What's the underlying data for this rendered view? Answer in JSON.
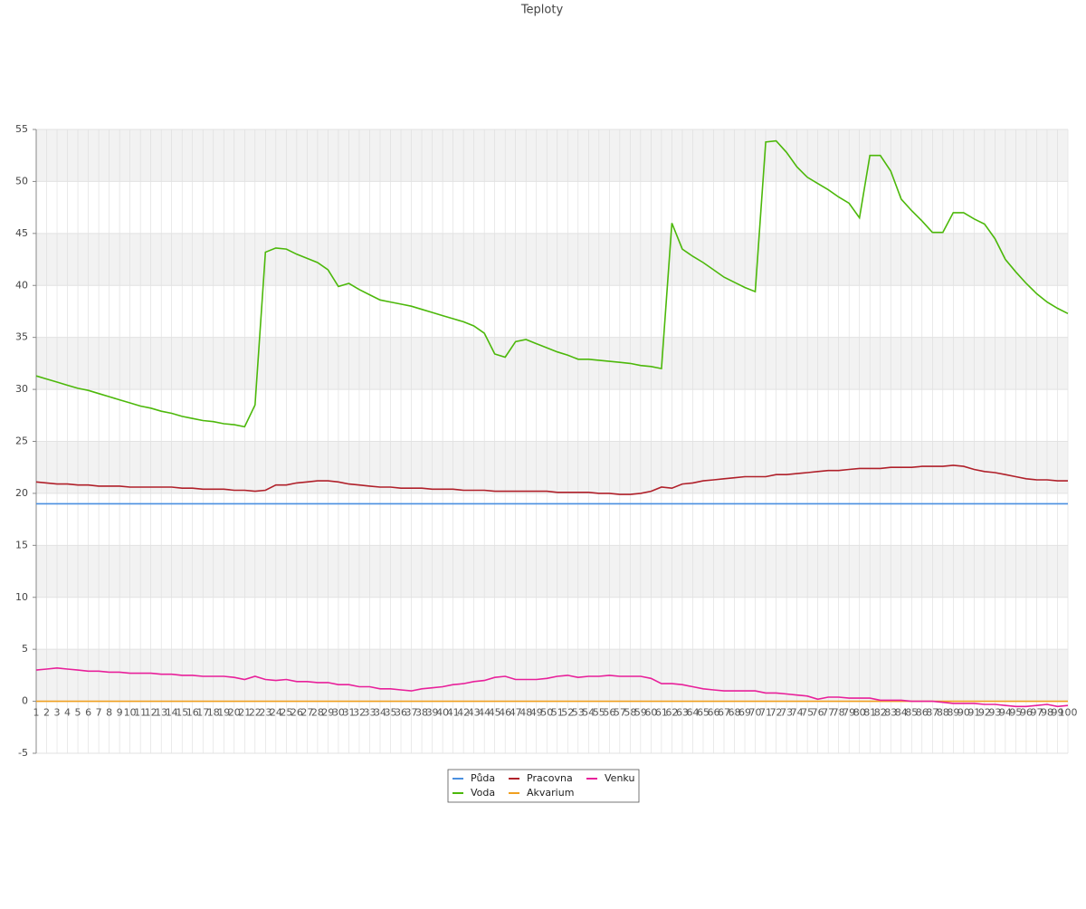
{
  "chart_data": {
    "type": "line",
    "title": "Teploty",
    "categories": [
      "1",
      "2",
      "3",
      "4",
      "5",
      "6",
      "7",
      "8",
      "9",
      "10",
      "11",
      "12",
      "13",
      "14",
      "15",
      "16",
      "17",
      "18",
      "19",
      "20",
      "21",
      "22",
      "23",
      "24",
      "25",
      "26",
      "27",
      "28",
      "29",
      "30",
      "31",
      "32",
      "33",
      "34",
      "35",
      "36",
      "37",
      "38",
      "39",
      "40",
      "41",
      "42",
      "43",
      "44",
      "45",
      "46",
      "47",
      "48",
      "49",
      "50",
      "51",
      "52",
      "53",
      "54",
      "55",
      "56",
      "57",
      "58",
      "59",
      "60",
      "61",
      "62",
      "63",
      "64",
      "65",
      "66",
      "67",
      "68",
      "69",
      "70",
      "71",
      "72",
      "73",
      "74",
      "75",
      "76",
      "77",
      "78",
      "79",
      "80",
      "81",
      "82",
      "83",
      "84",
      "85",
      "86",
      "87",
      "88",
      "89",
      "90",
      "91",
      "92",
      "93",
      "94",
      "95",
      "96",
      "97",
      "98",
      "99",
      "100"
    ],
    "series": [
      {
        "name": "Půda",
        "color": "#4a8fe0",
        "values": [
          19,
          19,
          19,
          19,
          19,
          19,
          19,
          19,
          19,
          19,
          19,
          19,
          19,
          19,
          19,
          19,
          19,
          19,
          19,
          19,
          19,
          19,
          19,
          19,
          19,
          19,
          19,
          19,
          19,
          19,
          19,
          19,
          19,
          19,
          19,
          19,
          19,
          19,
          19,
          19,
          19,
          19,
          19,
          19,
          19,
          19,
          19,
          19,
          19,
          19,
          19,
          19,
          19,
          19,
          19,
          19,
          19,
          19,
          19,
          19,
          19,
          19,
          19,
          19,
          19,
          19,
          19,
          19,
          19,
          19,
          19,
          19,
          19,
          19,
          19,
          19,
          19,
          19,
          19,
          19,
          19,
          19,
          19,
          19,
          19,
          19,
          19,
          19,
          19,
          19,
          19,
          19,
          19,
          19,
          19,
          19,
          19,
          19,
          19,
          19
        ]
      },
      {
        "name": "Voda",
        "color": "#4cb80a",
        "values": [
          31.3,
          31.0,
          30.7,
          30.4,
          30.1,
          29.9,
          29.6,
          29.3,
          29.0,
          28.7,
          28.4,
          28.2,
          27.9,
          27.7,
          27.4,
          27.2,
          27.0,
          26.9,
          26.7,
          26.6,
          26.4,
          28.5,
          43.2,
          43.6,
          43.5,
          43.0,
          42.6,
          42.2,
          41.5,
          39.9,
          40.2,
          39.6,
          39.1,
          38.6,
          38.4,
          38.2,
          38.0,
          37.7,
          37.4,
          37.1,
          36.8,
          36.5,
          36.1,
          35.4,
          33.4,
          33.1,
          34.6,
          34.8,
          34.4,
          34.0,
          33.6,
          33.3,
          32.9,
          32.9,
          32.8,
          32.7,
          32.6,
          32.5,
          32.3,
          32.2,
          32.0,
          46.0,
          43.5,
          42.8,
          42.2,
          41.5,
          40.8,
          40.3,
          39.8,
          39.4,
          53.8,
          53.9,
          52.8,
          51.4,
          50.4,
          49.8,
          49.2,
          48.5,
          47.9,
          46.5,
          52.5,
          52.5,
          51.0,
          48.3,
          47.2,
          46.2,
          45.1,
          45.1,
          47.0,
          47.0,
          46.4,
          45.9,
          44.5,
          42.5,
          41.3,
          40.2,
          39.2,
          38.4,
          37.8,
          37.3
        ]
      },
      {
        "name": "Pracovna",
        "color": "#b0202a",
        "values": [
          21.1,
          21.0,
          20.9,
          20.9,
          20.8,
          20.8,
          20.7,
          20.7,
          20.7,
          20.6,
          20.6,
          20.6,
          20.6,
          20.6,
          20.5,
          20.5,
          20.4,
          20.4,
          20.4,
          20.3,
          20.3,
          20.2,
          20.3,
          20.8,
          20.8,
          21.0,
          21.1,
          21.2,
          21.2,
          21.1,
          20.9,
          20.8,
          20.7,
          20.6,
          20.6,
          20.5,
          20.5,
          20.5,
          20.4,
          20.4,
          20.4,
          20.3,
          20.3,
          20.3,
          20.2,
          20.2,
          20.2,
          20.2,
          20.2,
          20.2,
          20.1,
          20.1,
          20.1,
          20.1,
          20.0,
          20.0,
          19.9,
          19.9,
          20.0,
          20.2,
          20.6,
          20.5,
          20.9,
          21.0,
          21.2,
          21.3,
          21.4,
          21.5,
          21.6,
          21.6,
          21.6,
          21.8,
          21.8,
          21.9,
          22.0,
          22.1,
          22.2,
          22.2,
          22.3,
          22.4,
          22.4,
          22.4,
          22.5,
          22.5,
          22.5,
          22.6,
          22.6,
          22.6,
          22.7,
          22.6,
          22.3,
          22.1,
          22.0,
          21.8,
          21.6,
          21.4,
          21.3,
          21.3,
          21.2,
          21.2
        ]
      },
      {
        "name": "Akvarium",
        "color": "#f0a020",
        "values": [
          0,
          0,
          0,
          0,
          0,
          0,
          0,
          0,
          0,
          0,
          0,
          0,
          0,
          0,
          0,
          0,
          0,
          0,
          0,
          0,
          0,
          0,
          0,
          0,
          0,
          0,
          0,
          0,
          0,
          0,
          0,
          0,
          0,
          0,
          0,
          0,
          0,
          0,
          0,
          0,
          0,
          0,
          0,
          0,
          0,
          0,
          0,
          0,
          0,
          0,
          0,
          0,
          0,
          0,
          0,
          0,
          0,
          0,
          0,
          0,
          0,
          0,
          0,
          0,
          0,
          0,
          0,
          0,
          0,
          0,
          0,
          0,
          0,
          0,
          0,
          0,
          0,
          0,
          0,
          0,
          0,
          0,
          0,
          0,
          0,
          0,
          0,
          0,
          0,
          0,
          0,
          0,
          0,
          0,
          0,
          0,
          0,
          0,
          0,
          0
        ]
      },
      {
        "name": "Venku",
        "color": "#e8209a",
        "values": [
          3.0,
          3.1,
          3.2,
          3.1,
          3.0,
          2.9,
          2.9,
          2.8,
          2.8,
          2.7,
          2.7,
          2.7,
          2.6,
          2.6,
          2.5,
          2.5,
          2.4,
          2.4,
          2.4,
          2.3,
          2.1,
          2.4,
          2.1,
          2.0,
          2.1,
          1.9,
          1.9,
          1.8,
          1.8,
          1.6,
          1.6,
          1.4,
          1.4,
          1.2,
          1.2,
          1.1,
          1.0,
          1.2,
          1.3,
          1.4,
          1.6,
          1.7,
          1.9,
          2.0,
          2.3,
          2.4,
          2.1,
          2.1,
          2.1,
          2.2,
          2.4,
          2.5,
          2.3,
          2.4,
          2.4,
          2.5,
          2.4,
          2.4,
          2.4,
          2.2,
          1.7,
          1.7,
          1.6,
          1.4,
          1.2,
          1.1,
          1.0,
          1.0,
          1.0,
          1.0,
          0.8,
          0.8,
          0.7,
          0.6,
          0.5,
          0.2,
          0.4,
          0.4,
          0.3,
          0.3,
          0.3,
          0.1,
          0.1,
          0.1,
          0.0,
          0.0,
          0.0,
          -0.1,
          -0.2,
          -0.2,
          -0.2,
          -0.3,
          -0.3,
          -0.4,
          -0.5,
          -0.5,
          -0.4,
          -0.3,
          -0.5,
          -0.4
        ]
      }
    ],
    "ylim": [
      -5,
      55
    ],
    "yticks": [
      -5,
      0,
      5,
      10,
      15,
      20,
      25,
      30,
      35,
      40,
      45,
      50,
      55
    ],
    "grid": true,
    "legend": "bottom"
  }
}
